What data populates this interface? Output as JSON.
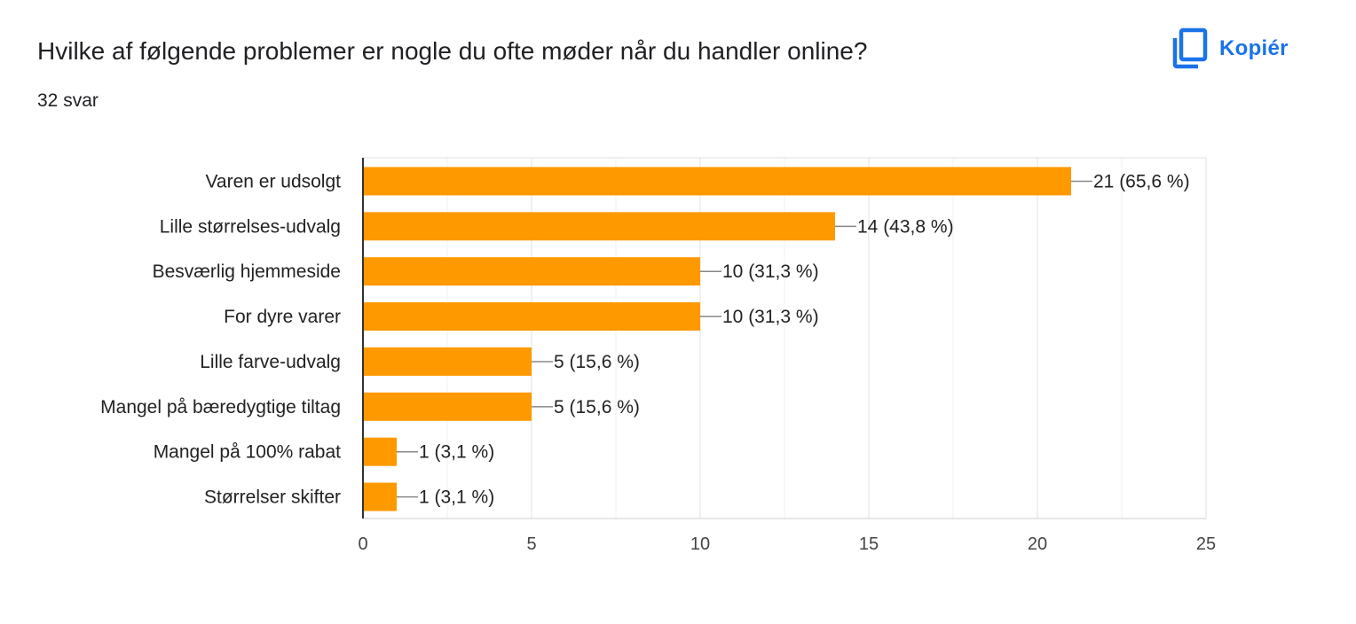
{
  "question": {
    "title": "Hvilke af følgende problemer er nogle du ofte møder når du handler online?",
    "response_count": "32 svar"
  },
  "copy_button": {
    "label": "Kopiér",
    "icon": "copy-icon",
    "color": "#1a73e8"
  },
  "chart_data": {
    "type": "bar",
    "orientation": "horizontal",
    "categories": [
      "Varen er udsolgt",
      "Lille størrelses-udvalg",
      "Besværlig hjemmeside",
      "For dyre varer",
      "Lille farve-udvalg",
      "Mangel på bæredygtige tiltag",
      "Mangel på 100% rabat",
      "Størrelser skifter"
    ],
    "values": [
      21,
      14,
      10,
      10,
      5,
      5,
      1,
      1
    ],
    "data_labels": [
      "21 (65,6 %)",
      "14 (43,8 %)",
      "10 (31,3 %)",
      "10 (31,3 %)",
      "5 (15,6 %)",
      "5 (15,6 %)",
      "1 (3,1 %)",
      "1 (3,1 %)"
    ],
    "xlim": [
      0,
      25
    ],
    "xticks": [
      0,
      5,
      10,
      15,
      20,
      25
    ],
    "minor_gridlines": true,
    "grid": true,
    "bar_color": "#ff9900"
  }
}
